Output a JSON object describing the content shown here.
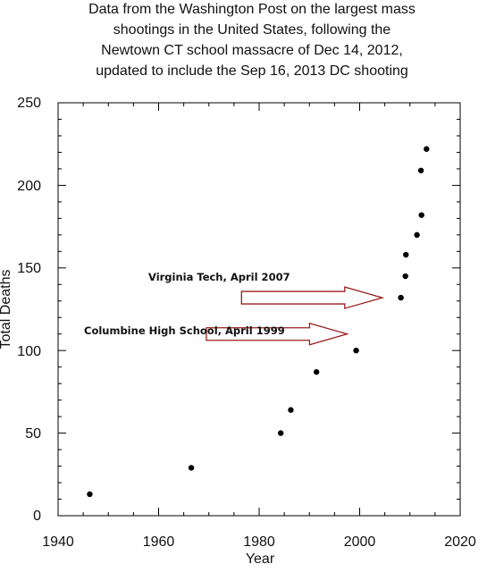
{
  "chart_data": {
    "type": "scatter",
    "title_lines": [
      "Data from the Washington Post on the largest mass",
      "shootings in the United States, following the",
      "Newtown CT school massacre of Dec 14, 2012,",
      "updated to include the Sep 16, 2013 DC shooting"
    ],
    "xlabel": "Year",
    "ylabel": "Total Deaths",
    "xlim": [
      1940,
      2020
    ],
    "ylim": [
      0,
      250
    ],
    "x_ticks": [
      "1940",
      "1960",
      "1980",
      "2000",
      "2020"
    ],
    "y_ticks": [
      "0",
      "50",
      "100",
      "150",
      "200",
      "250"
    ],
    "grid": false,
    "points": [
      {
        "x": 1946.3,
        "y": 13
      },
      {
        "x": 1966.5,
        "y": 29
      },
      {
        "x": 1984.3,
        "y": 50
      },
      {
        "x": 1986.3,
        "y": 64
      },
      {
        "x": 1991.4,
        "y": 87
      },
      {
        "x": 1999.3,
        "y": 100
      },
      {
        "x": 2008.2,
        "y": 132
      },
      {
        "x": 2009.1,
        "y": 145
      },
      {
        "x": 2009.2,
        "y": 158
      },
      {
        "x": 2011.4,
        "y": 170
      },
      {
        "x": 2012.3,
        "y": 182
      },
      {
        "x": 2012.2,
        "y": 209
      },
      {
        "x": 2013.3,
        "y": 222
      }
    ],
    "annotations": [
      {
        "text": "Virginia Tech, April 2007",
        "arrow_from": [
          1976.5,
          132
        ],
        "arrow_to": [
          2004.5,
          132
        ]
      },
      {
        "text": "Columbine High School, April 1999",
        "arrow_from": [
          1969.5,
          110
        ],
        "arrow_to": [
          1997.5,
          110
        ]
      }
    ],
    "colors": {
      "marker": "#000000",
      "arrow_stroke": "#9b1c1c",
      "arrow_fill": "#ffffff"
    }
  }
}
